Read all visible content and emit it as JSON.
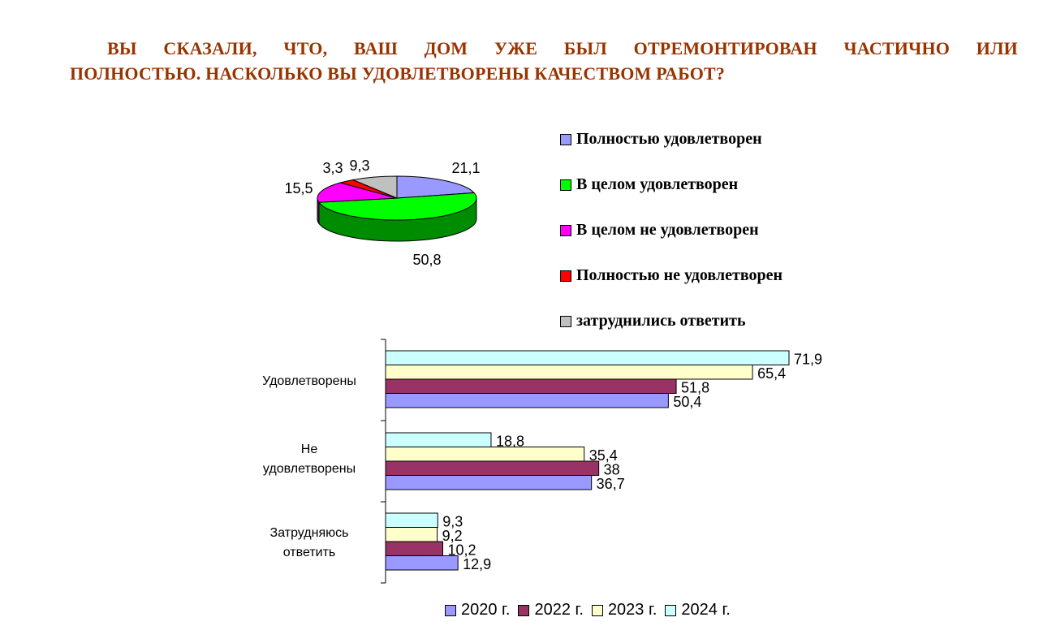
{
  "title": {
    "line1": "ВЫ СКАЗАЛИ, ЧТО, ВАШ ДОМ УЖЕ БЫЛ ОТРЕМОНТИРОВАН  ЧАСТИЧНО ИЛИ",
    "line2": "ПОЛНОСТЬЮ. НАСКОЛЬКО ВЫ УДОВЛЕТВОРЕНЫ КАЧЕСТВОМ РАБОТ?"
  },
  "chart_data": [
    {
      "type": "pie",
      "style": "3d",
      "slices": [
        {
          "label": "Полностью удовлетворен",
          "value": 21.1,
          "value_label": "21,1",
          "color": "#9999ff"
        },
        {
          "label": "В целом удовлетворен",
          "value": 50.8,
          "value_label": "50,8",
          "color": "#00ff00"
        },
        {
          "label": "В целом не удовлетворен",
          "value": 15.5,
          "value_label": "15,5",
          "color": "#ff00ff"
        },
        {
          "label": "Полностью не удовлетворен",
          "value": 3.3,
          "value_label": "3,3",
          "color": "#ff0000"
        },
        {
          "label": "затруднились ответить",
          "value": 9.3,
          "value_label": "9,3",
          "color": "#c0c0c0"
        }
      ],
      "legend_position": "right"
    },
    {
      "type": "bar",
      "orientation": "horizontal",
      "categories": [
        {
          "label": "Удовлетворены",
          "lines": [
            "Удовлетворены"
          ]
        },
        {
          "label": "Не удовлетворены",
          "lines": [
            "Не",
            "удовлетворены"
          ]
        },
        {
          "label": "Затрудняюсь ответить",
          "lines": [
            "Затрудняюсь",
            "ответить"
          ]
        }
      ],
      "series": [
        {
          "name": "2020 г.",
          "color": "#9999ff",
          "values": [
            50.4,
            36.7,
            12.9
          ],
          "labels": [
            "50,4",
            "36,7",
            "12,9"
          ]
        },
        {
          "name": "2022 г.",
          "color": "#993366",
          "values": [
            51.8,
            38,
            10.2
          ],
          "labels": [
            "51,8",
            "38",
            "10,2"
          ]
        },
        {
          "name": "2023 г.",
          "color": "#ffffcc",
          "values": [
            65.4,
            35.4,
            9.2
          ],
          "labels": [
            "65,4",
            "35,4",
            "9,2"
          ]
        },
        {
          "name": "2024 г.",
          "color": "#ccffff",
          "values": [
            71.9,
            18.8,
            9.3
          ],
          "labels": [
            "71,9",
            "18,8",
            "9,3"
          ]
        }
      ],
      "xlim": [
        0,
        72
      ],
      "grid": false,
      "legend_position": "bottom"
    }
  ]
}
